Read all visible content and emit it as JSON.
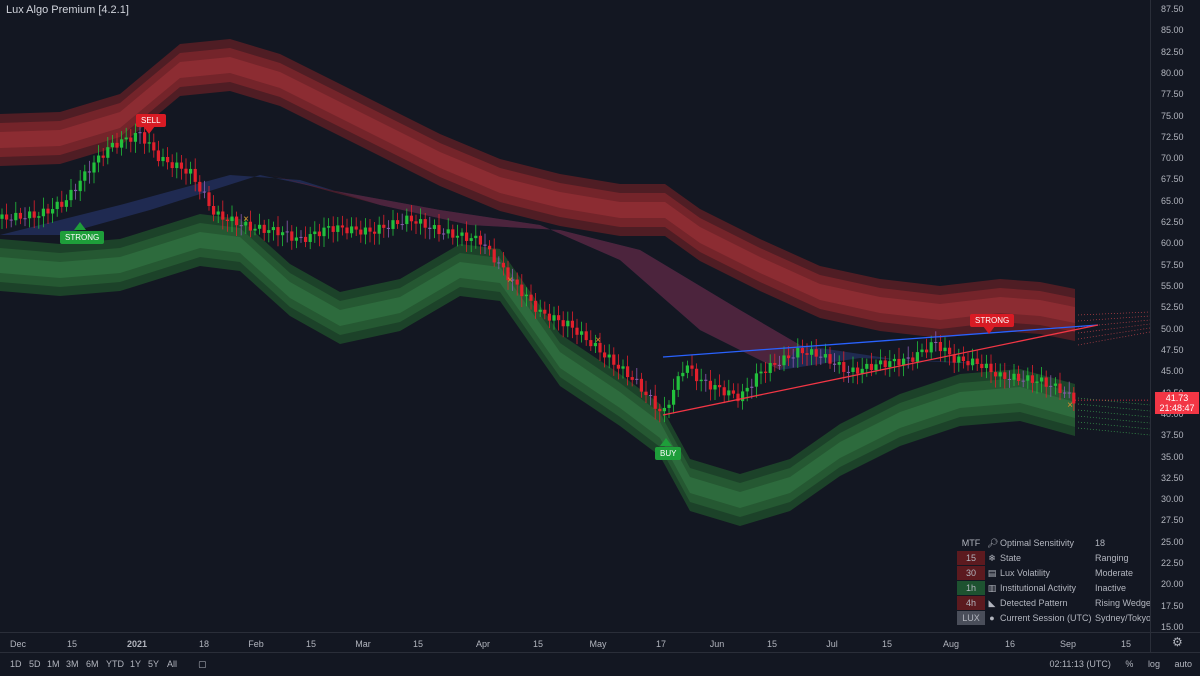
{
  "study_title": "Lux Algo Premium [4.2.1]",
  "signals": {
    "sell": "SELL",
    "buy": "BUY",
    "strong_low": "STRONG",
    "strong_high": "STRONG"
  },
  "price_axis": {
    "ticks": [
      "87.50",
      "85.00",
      "82.50",
      "80.00",
      "77.50",
      "75.00",
      "72.50",
      "70.00",
      "67.50",
      "65.00",
      "62.50",
      "60.00",
      "57.50",
      "55.00",
      "52.50",
      "50.00",
      "47.50",
      "45.00",
      "42.50",
      "40.00",
      "37.50",
      "35.00",
      "32.50",
      "30.00",
      "27.50",
      "25.00",
      "22.50",
      "20.00",
      "17.50",
      "15.00"
    ],
    "last_price": "41.73",
    "countdown": "21:48:47"
  },
  "time_axis": {
    "ticks": [
      "Dec",
      "15",
      "2021",
      "18",
      "Feb",
      "15",
      "Mar",
      "15",
      "Apr",
      "15",
      "May",
      "17",
      "Jun",
      "15",
      "Jul",
      "15",
      "Aug",
      "16",
      "Sep",
      "15"
    ]
  },
  "dashboard": {
    "header": {
      "tf": "MTF",
      "label": "Optimal  Sensitivity",
      "value": "18",
      "icon": "magnifier-icon"
    },
    "rows": [
      {
        "tf": "15",
        "tf_color": "#5c1a1f",
        "icon": "snowflake-icon",
        "label": "State",
        "value": "Ranging"
      },
      {
        "tf": "30",
        "tf_color": "#5c1a1f",
        "icon": "chart-icon",
        "label": "Lux Volatility",
        "value": "Moderate"
      },
      {
        "tf": "1h",
        "tf_color": "#1d5230",
        "icon": "bank-icon",
        "label": "Institutional Activity",
        "value": "Inactive"
      },
      {
        "tf": "4h",
        "tf_color": "#5c1a1f",
        "icon": "triangle-ruler-icon",
        "label": "Detected Pattern",
        "value": "Rising Wedge"
      },
      {
        "tf": "LUX",
        "tf_color": "#4a4e5a",
        "icon": "clock-icon",
        "label": "Current Session (UTC)",
        "value": "Sydney/Tokyo"
      }
    ]
  },
  "bottom_bar": {
    "ranges": [
      "1D",
      "5D",
      "1M",
      "3M",
      "6M",
      "YTD",
      "1Y",
      "5Y",
      "All"
    ],
    "clock": "02:11:13 (UTC)",
    "percent": "%",
    "log": "log",
    "auto": "auto"
  },
  "chart_data": {
    "type": "candlestick",
    "y_axis_range": [
      15,
      87.5
    ],
    "close_approx": [
      {
        "x": "Dec",
        "y": 63
      },
      {
        "x": "15",
        "y": 64
      },
      {
        "x": "2021",
        "y": 72
      },
      {
        "x": "18",
        "y": 70
      },
      {
        "x": "Feb",
        "y": 62.5
      },
      {
        "x": "15",
        "y": 60.5
      },
      {
        "x": "Mar",
        "y": 62
      },
      {
        "x": "15",
        "y": 62.5
      },
      {
        "x": "Apr",
        "y": 59
      },
      {
        "x": "15",
        "y": 54
      },
      {
        "x": "May",
        "y": 47
      },
      {
        "x": "17",
        "y": 40
      },
      {
        "x": "Jun",
        "y": 44
      },
      {
        "x": "15",
        "y": 46.5
      },
      {
        "x": "Jul",
        "y": 45
      },
      {
        "x": "15",
        "y": 46
      },
      {
        "x": "Aug",
        "y": 47
      },
      {
        "x": "16",
        "y": 44
      },
      {
        "x": "Sep",
        "y": 41.73
      }
    ],
    "colors": {
      "up": "#22c03c",
      "down": "#e2202c",
      "neutral": "#8a5bb0",
      "upper_band": "#8b2a2e",
      "lower_band": "#2b6e38",
      "wedge_upper": "#2962ff",
      "wedge_lower": "#f23645"
    }
  }
}
